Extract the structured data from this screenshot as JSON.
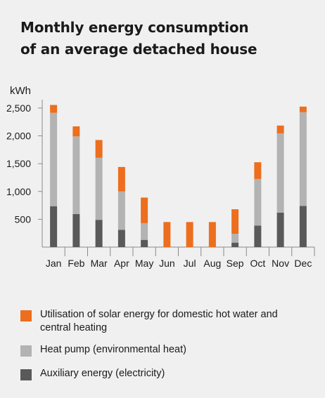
{
  "title": {
    "line1": "Monthly energy consumption",
    "line2": "of an average detached house"
  },
  "colors": {
    "solar": "#ec6e1e",
    "heatpump": "#b3b3b3",
    "auxiliary": "#595959",
    "axis": "#8a8a8a",
    "background": "#f0f0f0"
  },
  "chart_data": {
    "type": "bar",
    "stacked": true,
    "ylabel": "kWh",
    "ylim": [
      0,
      2650
    ],
    "yticks": [
      500,
      1000,
      1500,
      2000,
      2500
    ],
    "ytick_labels": [
      "500",
      "1,000",
      "1,500",
      "2,000",
      "2,500"
    ],
    "grid": false,
    "legend_position": "bottom",
    "categories": [
      "Jan",
      "Feb",
      "Mar",
      "Apr",
      "May",
      "Jun",
      "Jul",
      "Aug",
      "Sep",
      "Oct",
      "Nov",
      "Dec"
    ],
    "series": [
      {
        "name": "Auxiliary energy (electricity)",
        "color_key": "auxiliary",
        "values": [
          735,
          595,
          490,
          310,
          130,
          0,
          0,
          0,
          80,
          385,
          620,
          740
        ]
      },
      {
        "name": "Heat pump (environmental heat)",
        "color_key": "heatpump",
        "values": [
          1680,
          1395,
          1115,
          690,
          300,
          0,
          0,
          0,
          160,
          840,
          1425,
          1685
        ]
      },
      {
        "name": "Utilisation of solar energy for domestic hot water and central heating",
        "color_key": "solar",
        "values": [
          140,
          180,
          320,
          440,
          460,
          450,
          450,
          450,
          440,
          300,
          140,
          100
        ]
      }
    ]
  },
  "legend": [
    {
      "label": "Utilisation of solar energy for domestic hot water and central heating",
      "color_key": "solar"
    },
    {
      "label": "Heat pump (environmental heat)",
      "color_key": "heatpump"
    },
    {
      "label": "Auxiliary energy (electricity)",
      "color_key": "auxiliary"
    }
  ]
}
